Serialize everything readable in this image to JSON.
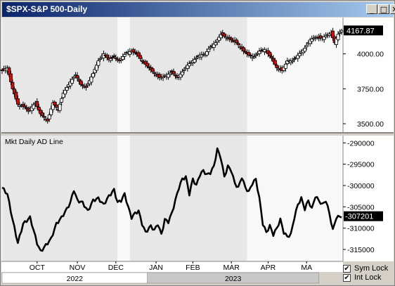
{
  "window": {
    "title": "$SPX-S&P 500-Daily",
    "minimize_glyph": "_",
    "maximize_glyph": "□",
    "close_glyph": "✕"
  },
  "colors": {
    "up_fill": "#ffffff",
    "down_fill": "#cc1111",
    "line": "#000000",
    "panel_bg_left": "#e7e7e7",
    "panel_bg_right": "#f8f8f8"
  },
  "chart_data": [
    {
      "type": "candlestick",
      "title": "$SPX-S&P 500-Daily",
      "ylim": [
        3440,
        4260
      ],
      "yticks": [
        3500,
        3750,
        4000
      ],
      "ytick_labels": [
        "3500.00",
        "3750.00",
        "4000.00"
      ],
      "last_value": 4167.87,
      "last_value_label": "4167.87",
      "anchors": [
        [
          0,
          3880
        ],
        [
          3,
          3900
        ],
        [
          6,
          3750
        ],
        [
          9,
          3640
        ],
        [
          13,
          3620
        ],
        [
          15,
          3590
        ],
        [
          19,
          3650
        ],
        [
          22,
          3570
        ],
        [
          26,
          3520
        ],
        [
          29,
          3650
        ],
        [
          32,
          3600
        ],
        [
          35,
          3720
        ],
        [
          39,
          3800
        ],
        [
          42,
          3850
        ],
        [
          45,
          3780
        ],
        [
          48,
          3760
        ],
        [
          52,
          3860
        ],
        [
          55,
          3950
        ],
        [
          58,
          4000
        ],
        [
          61,
          3960
        ],
        [
          64,
          3980
        ],
        [
          67,
          3950
        ],
        [
          71,
          4010
        ],
        [
          74,
          4020
        ],
        [
          77,
          4000
        ],
        [
          80,
          3950
        ],
        [
          84,
          3900
        ],
        [
          87,
          3860
        ],
        [
          90,
          3830
        ],
        [
          93,
          3840
        ],
        [
          97,
          3870
        ],
        [
          100,
          3830
        ],
        [
          103,
          3870
        ],
        [
          106,
          3920
        ],
        [
          110,
          3960
        ],
        [
          113,
          3990
        ],
        [
          116,
          4000
        ],
        [
          119,
          4050
        ],
        [
          122,
          4080
        ],
        [
          125,
          4140
        ],
        [
          128,
          4120
        ],
        [
          131,
          4100
        ],
        [
          134,
          4080
        ],
        [
          138,
          4020
        ],
        [
          141,
          3990
        ],
        [
          144,
          3980
        ],
        [
          147,
          4020
        ],
        [
          150,
          4030
        ],
        [
          154,
          3970
        ],
        [
          157,
          3900
        ],
        [
          160,
          3880
        ],
        [
          163,
          3950
        ],
        [
          166,
          3950
        ],
        [
          169,
          3990
        ],
        [
          173,
          4040
        ],
        [
          176,
          4100
        ],
        [
          179,
          4120
        ],
        [
          182,
          4110
        ],
        [
          185,
          4130
        ],
        [
          188,
          4150
        ],
        [
          190,
          4080
        ],
        [
          192,
          4140
        ],
        [
          194,
          4168
        ]
      ]
    },
    {
      "type": "line",
      "title": "Mkt Daily AD Line",
      "ylim": [
        -317800,
        -288300
      ],
      "yticks": [
        -315000,
        -310000,
        -305000,
        -300000,
        -295000,
        -290000
      ],
      "ytick_labels": [
        "-315000",
        "-310000",
        "-305000",
        "-300000",
        "-295000",
        "-290000"
      ],
      "last_value": -307201,
      "last_value_label": "-307201",
      "anchors": [
        [
          0,
          -300500
        ],
        [
          3,
          -302000
        ],
        [
          6,
          -308000
        ],
        [
          9,
          -313500
        ],
        [
          12,
          -309000
        ],
        [
          16,
          -307500
        ],
        [
          20,
          -313500
        ],
        [
          22,
          -315500
        ],
        [
          25,
          -314000
        ],
        [
          28,
          -312500
        ],
        [
          31,
          -309000
        ],
        [
          34,
          -307500
        ],
        [
          37,
          -305500
        ],
        [
          39,
          -304000
        ],
        [
          41,
          -301000
        ],
        [
          43,
          -303500
        ],
        [
          46,
          -304000
        ],
        [
          49,
          -306000
        ],
        [
          52,
          -303500
        ],
        [
          55,
          -303000
        ],
        [
          58,
          -304500
        ],
        [
          61,
          -302500
        ],
        [
          64,
          -301000
        ],
        [
          66,
          -304000
        ],
        [
          68,
          -303500
        ],
        [
          70,
          -302000
        ],
        [
          72,
          -305000
        ],
        [
          74,
          -307500
        ],
        [
          76,
          -306500
        ],
        [
          78,
          -306000
        ],
        [
          80,
          -309000
        ],
        [
          82,
          -311000
        ],
        [
          85,
          -309500
        ],
        [
          87,
          -310500
        ],
        [
          89,
          -309000
        ],
        [
          91,
          -311500
        ],
        [
          93,
          -308000
        ],
        [
          95,
          -308500
        ],
        [
          97,
          -306500
        ],
        [
          99,
          -303500
        ],
        [
          101,
          -300500
        ],
        [
          103,
          -298500
        ],
        [
          105,
          -298000
        ],
        [
          107,
          -302000
        ],
        [
          109,
          -298500
        ],
        [
          111,
          -300000
        ],
        [
          113,
          -297500
        ],
        [
          115,
          -296500
        ],
        [
          117,
          -297500
        ],
        [
          119,
          -297000
        ],
        [
          121,
          -295500
        ],
        [
          123,
          -291500
        ],
        [
          125,
          -293500
        ],
        [
          127,
          -298000
        ],
        [
          129,
          -295500
        ],
        [
          131,
          -296500
        ],
        [
          133,
          -299500
        ],
        [
          135,
          -300500
        ],
        [
          137,
          -298000
        ],
        [
          139,
          -300500
        ],
        [
          141,
          -301500
        ],
        [
          143,
          -299500
        ],
        [
          145,
          -298500
        ],
        [
          147,
          -303000
        ],
        [
          149,
          -309000
        ],
        [
          151,
          -311000
        ],
        [
          153,
          -309500
        ],
        [
          155,
          -311500
        ],
        [
          157,
          -310000
        ],
        [
          159,
          -308000
        ],
        [
          161,
          -311000
        ],
        [
          163,
          -312000
        ],
        [
          165,
          -311500
        ],
        [
          167,
          -307500
        ],
        [
          169,
          -304500
        ],
        [
          171,
          -303000
        ],
        [
          173,
          -305500
        ],
        [
          175,
          -303500
        ],
        [
          177,
          -305500
        ],
        [
          179,
          -302500
        ],
        [
          181,
          -303500
        ],
        [
          183,
          -304500
        ],
        [
          185,
          -303500
        ],
        [
          187,
          -306500
        ],
        [
          189,
          -310500
        ],
        [
          191,
          -307500
        ],
        [
          194,
          -307200
        ]
      ]
    }
  ],
  "x_axis": {
    "month_labels": [
      {
        "label": "OCT",
        "bar": 20
      },
      {
        "label": "NOV",
        "bar": 43
      },
      {
        "label": "DEC",
        "bar": 65
      },
      {
        "label": "JAN",
        "bar": 88
      },
      {
        "label": "FEB",
        "bar": 109
      },
      {
        "label": "MAR",
        "bar": 131
      },
      {
        "label": "APR",
        "bar": 152
      },
      {
        "label": "MA",
        "bar": 174
      }
    ],
    "year_labels": [
      {
        "label": "2022",
        "start_bar": 0,
        "end_bar": 83
      },
      {
        "label": "2023",
        "start_bar": 83,
        "end_bar": 181
      }
    ],
    "shade_bands": [
      [
        0,
        66
      ],
      [
        66,
        73
      ],
      [
        73,
        140
      ],
      [
        140,
        194
      ]
    ]
  },
  "controls": {
    "sym_lock": {
      "label": "Sym Lock",
      "checked": true
    },
    "int_lock": {
      "label": "Int Lock",
      "checked": true
    }
  }
}
